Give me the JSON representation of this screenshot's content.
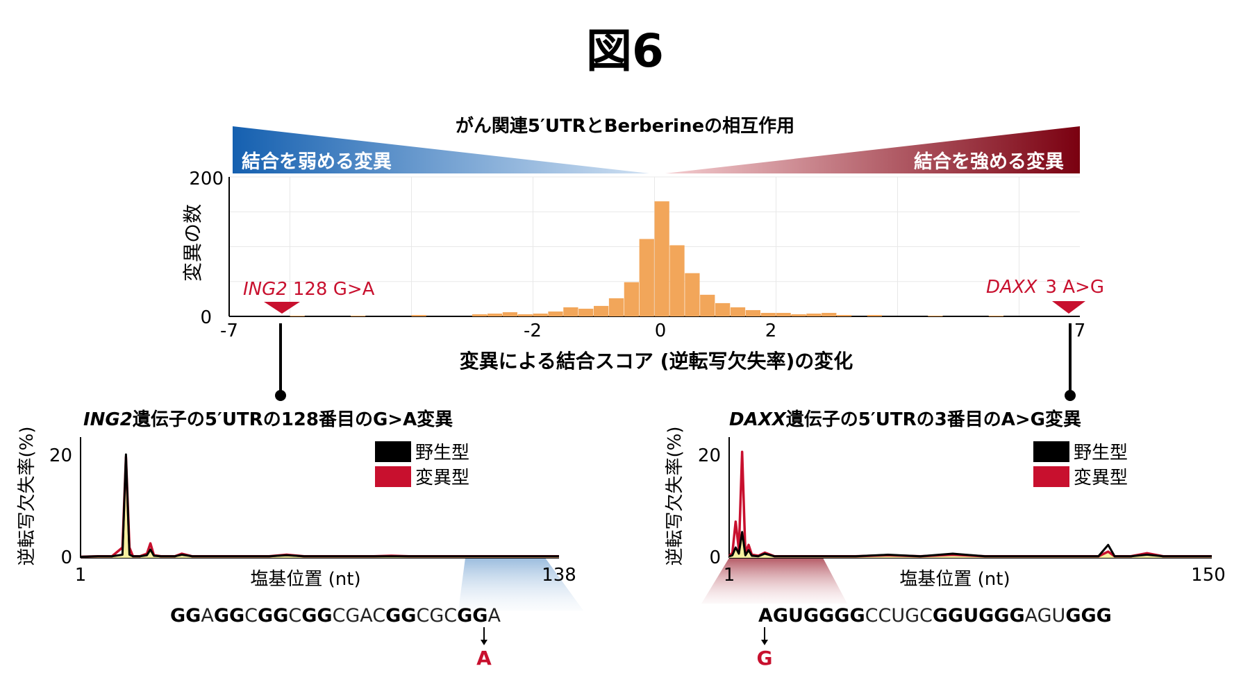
{
  "figure": {
    "title": "図6",
    "banner_title": "がん関連5′UTRとBerberineの相互作用",
    "banner_left": "結合を弱める変異",
    "banner_right": "結合を強める変異",
    "colors": {
      "histogram": "#f2a65a",
      "wildtype": "#000000",
      "mutant": "#c8102e",
      "overlap": "#f5f0a0",
      "blue_dark": "#1560b0",
      "blue_light": "#cfe0f2",
      "red_dark": "#7a0010",
      "red_light": "#f4cdd0",
      "annotation": "#c8102e"
    }
  },
  "histogram": {
    "ylabel": "変異の数",
    "xlabel": "変異による結合スコア (逆転写欠失率)の変化",
    "y_ticks": [
      "200",
      "0"
    ],
    "x_ticks": [
      "-7",
      "-2",
      "0",
      "2",
      "7"
    ],
    "annotation_left": {
      "gene": "ING2",
      "mutation": "128 G>A"
    },
    "annotation_right": {
      "gene": "DAXX",
      "mutation": "3 A>G"
    }
  },
  "panel_left": {
    "title_gene": "ING2",
    "title_rest": "遺伝子の5′UTRの128番目のG>A変異",
    "ylabel": "逆転写欠失率(%)",
    "xlabel": "塩基位置 (nt)",
    "y_ticks": [
      "20",
      "0"
    ],
    "x_ticks": [
      "1",
      "138"
    ],
    "legend_wt": "野生型",
    "legend_mut": "変異型",
    "sequence": [
      {
        "t": "GG",
        "b": true
      },
      {
        "t": "A",
        "b": false
      },
      {
        "t": "GG",
        "b": true
      },
      {
        "t": "C",
        "b": false
      },
      {
        "t": "GG",
        "b": true
      },
      {
        "t": "C",
        "b": false
      },
      {
        "t": "GG",
        "b": true
      },
      {
        "t": "CGAC",
        "b": false
      },
      {
        "t": "GG",
        "b": true
      },
      {
        "t": "CGC",
        "b": false
      },
      {
        "t": "GG",
        "b": true
      },
      {
        "t": "A",
        "b": false
      }
    ],
    "mutation_base": "A"
  },
  "panel_right": {
    "title_gene": "DAXX",
    "title_rest": "遺伝子の5′UTRの3番目のA>G変異",
    "ylabel": "逆転写欠失率(%)",
    "xlabel": "塩基位置 (nt)",
    "y_ticks": [
      "20",
      "0"
    ],
    "x_ticks": [
      "1",
      "150"
    ],
    "legend_wt": "野生型",
    "legend_mut": "変異型",
    "sequence": [
      {
        "t": "AGUGGGG",
        "b": true
      },
      {
        "t": "CCUGC",
        "b": false
      },
      {
        "t": "GGUGGG",
        "b": true
      },
      {
        "t": "AGU",
        "b": false
      },
      {
        "t": "GGG",
        "b": true
      }
    ],
    "mutation_base": "G"
  },
  "chart_data": [
    {
      "type": "bar",
      "xlabel": "変異による結合スコア (逆転写欠失率)の変化",
      "ylabel": "変異の数",
      "xlim": [
        -7,
        7
      ],
      "ylim": [
        0,
        200
      ],
      "bin_width": 0.25,
      "bins_left_edges": [
        -6.0,
        -5.0,
        -4.0,
        -3.0,
        -2.75,
        -2.5,
        -2.25,
        -2.0,
        -1.75,
        -1.5,
        -1.25,
        -1.0,
        -0.75,
        -0.5,
        -0.25,
        0.0,
        0.25,
        0.5,
        0.75,
        1.0,
        1.25,
        1.5,
        1.75,
        2.0,
        2.25,
        2.5,
        2.75,
        3.0,
        3.5,
        4.5,
        5.5
      ],
      "values": [
        1,
        1,
        2,
        3,
        4,
        6,
        3,
        4,
        7,
        13,
        11,
        15,
        26,
        49,
        111,
        165,
        102,
        62,
        31,
        19,
        13,
        9,
        5,
        5,
        3,
        4,
        5,
        2,
        2,
        1,
        1
      ]
    },
    {
      "type": "line",
      "title": "ING2遺伝子の5′UTRの128番目のG>A変異",
      "xlabel": "塩基位置 (nt)",
      "ylabel": "逆転写欠失率(%)",
      "xlim": [
        1,
        138
      ],
      "ylim": [
        0,
        20
      ],
      "series": [
        {
          "name": "野生型",
          "x": [
            1,
            6,
            10,
            13,
            14,
            15,
            16,
            18,
            20,
            21,
            22,
            24,
            28,
            30,
            33,
            36,
            40,
            45,
            50,
            55,
            60,
            65,
            70,
            75,
            80,
            85,
            90,
            95,
            100,
            105,
            110,
            115,
            120,
            125,
            130,
            138
          ],
          "values": [
            0.2,
            0.3,
            0.3,
            0.6,
            20.0,
            0.6,
            0.3,
            0.3,
            0.5,
            1.6,
            0.4,
            0.3,
            0.3,
            0.6,
            0.3,
            0.3,
            0.3,
            0.3,
            0.3,
            0.3,
            0.5,
            0.3,
            0.3,
            0.3,
            0.3,
            0.3,
            0.3,
            0.3,
            0.3,
            0.3,
            0.3,
            0.3,
            0.3,
            0.3,
            0.3,
            0.3
          ]
        },
        {
          "name": "変異型",
          "x": [
            1,
            6,
            10,
            13,
            14,
            15,
            16,
            18,
            20,
            21,
            22,
            24,
            28,
            30,
            33,
            36,
            40,
            45,
            50,
            55,
            60,
            65,
            70,
            75,
            80,
            85,
            90,
            95,
            100,
            105,
            110,
            115,
            120,
            125,
            130,
            138
          ],
          "values": [
            0.2,
            0.3,
            0.3,
            2.0,
            19.5,
            2.0,
            0.3,
            0.3,
            0.8,
            2.8,
            0.5,
            0.3,
            0.3,
            0.8,
            0.3,
            0.3,
            0.3,
            0.3,
            0.3,
            0.3,
            0.6,
            0.3,
            0.3,
            0.3,
            0.3,
            0.3,
            0.4,
            0.3,
            0.3,
            0.3,
            0.3,
            0.3,
            0.3,
            0.3,
            0.3,
            0.3
          ]
        }
      ]
    },
    {
      "type": "line",
      "title": "DAXX遺伝子の5′UTRの3番目のA>G変異",
      "xlabel": "塩基位置 (nt)",
      "ylabel": "逆転写欠失率(%)",
      "xlim": [
        1,
        150
      ],
      "ylim": [
        0,
        20
      ],
      "series": [
        {
          "name": "野生型",
          "x": [
            1,
            2,
            3,
            4,
            5,
            6,
            7,
            8,
            10,
            12,
            15,
            20,
            25,
            30,
            40,
            50,
            60,
            70,
            80,
            90,
            100,
            110,
            115,
            118,
            120,
            125,
            130,
            135,
            140,
            145,
            150
          ],
          "values": [
            0.3,
            0.5,
            2.0,
            0.8,
            5.0,
            0.5,
            1.5,
            0.4,
            0.3,
            0.8,
            0.3,
            0.3,
            0.3,
            0.3,
            0.3,
            0.6,
            0.3,
            0.8,
            0.3,
            0.3,
            0.3,
            0.3,
            0.3,
            2.5,
            0.3,
            0.3,
            0.6,
            0.3,
            0.3,
            0.3,
            0.3
          ]
        },
        {
          "name": "変異型",
          "x": [
            1,
            2,
            3,
            4,
            5,
            6,
            7,
            8,
            10,
            12,
            15,
            20,
            25,
            30,
            40,
            50,
            60,
            70,
            80,
            90,
            100,
            110,
            115,
            118,
            120,
            125,
            130,
            135,
            140,
            145,
            150
          ],
          "values": [
            0.3,
            1.0,
            7.0,
            1.5,
            20.5,
            1.0,
            2.5,
            0.6,
            0.4,
            1.0,
            0.3,
            0.3,
            0.3,
            0.3,
            0.3,
            0.5,
            0.3,
            0.6,
            0.3,
            0.3,
            0.3,
            0.3,
            0.3,
            1.2,
            0.3,
            0.3,
            0.9,
            0.3,
            0.3,
            0.3,
            0.3
          ]
        }
      ]
    }
  ]
}
